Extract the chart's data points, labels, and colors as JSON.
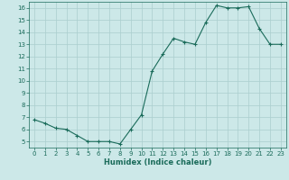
{
  "xlabel": "Humidex (Indice chaleur)",
  "x_values": [
    0,
    1,
    2,
    3,
    4,
    5,
    6,
    7,
    8,
    9,
    10,
    11,
    12,
    13,
    14,
    15,
    16,
    17,
    18,
    19,
    20,
    21,
    22,
    23
  ],
  "y_values": [
    6.8,
    6.5,
    6.1,
    6.0,
    5.5,
    5.0,
    5.0,
    5.0,
    4.8,
    6.0,
    7.2,
    10.8,
    12.2,
    13.5,
    13.2,
    13.0,
    14.8,
    16.2,
    16.0,
    16.0,
    16.1,
    14.3,
    13.0,
    13.0
  ],
  "ylim": [
    4.5,
    16.5
  ],
  "xlim": [
    -0.5,
    23.5
  ],
  "yticks": [
    5,
    6,
    7,
    8,
    9,
    10,
    11,
    12,
    13,
    14,
    15,
    16
  ],
  "xticks": [
    0,
    1,
    2,
    3,
    4,
    5,
    6,
    7,
    8,
    9,
    10,
    11,
    12,
    13,
    14,
    15,
    16,
    17,
    18,
    19,
    20,
    21,
    22,
    23
  ],
  "line_color": "#1a6b5a",
  "marker": "+",
  "bg_color": "#cce8e8",
  "grid_color": "#aacece",
  "tick_label_color": "#1a6b5a",
  "xlabel_color": "#1a6b5a",
  "label_fontsize": 5.0,
  "xlabel_fontsize": 6.0,
  "linewidth": 0.8,
  "markersize": 3.0,
  "markeredgewidth": 0.8
}
